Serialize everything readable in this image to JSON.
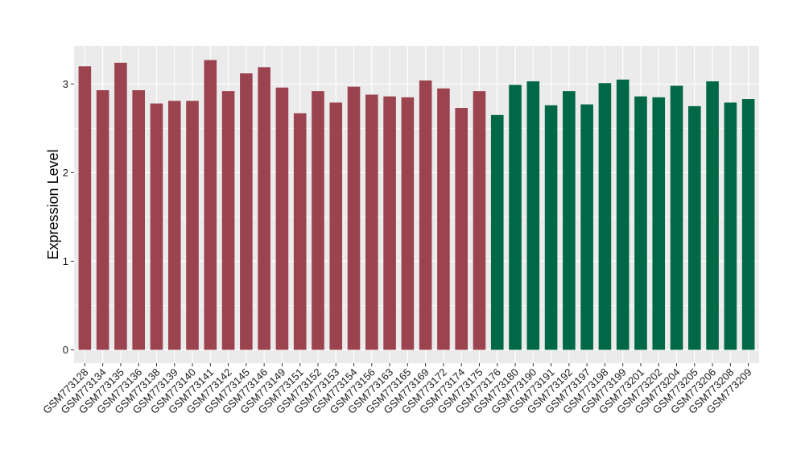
{
  "chart_data": {
    "type": "bar",
    "title": "",
    "xlabel": "",
    "ylabel": "Expression Level",
    "ylim": [
      -0.15,
      3.43
    ],
    "yticks": [
      0,
      1,
      2,
      3
    ],
    "grid": true,
    "legend": "none",
    "panel_color": "#ebebeb",
    "grid_color": "#ffffff",
    "categories": [
      "GSM773128",
      "GSM773134",
      "GSM773135",
      "GSM773136",
      "GSM773138",
      "GSM773139",
      "GSM773140",
      "GSM773141",
      "GSM773142",
      "GSM773145",
      "GSM773146",
      "GSM773149",
      "GSM773151",
      "GSM773152",
      "GSM773153",
      "GSM773154",
      "GSM773156",
      "GSM773163",
      "GSM773165",
      "GSM773169",
      "GSM773172",
      "GSM773174",
      "GSM773175",
      "GSM773176",
      "GSM773180",
      "GSM773190",
      "GSM773191",
      "GSM773192",
      "GSM773197",
      "GSM773198",
      "GSM773199",
      "GSM773201",
      "GSM773202",
      "GSM773204",
      "GSM773205",
      "GSM773206",
      "GSM773208",
      "GSM773209"
    ],
    "values": [
      3.2,
      2.93,
      3.24,
      2.93,
      2.78,
      2.81,
      2.81,
      3.27,
      2.92,
      3.12,
      3.19,
      2.96,
      2.67,
      2.92,
      2.79,
      2.97,
      2.88,
      2.86,
      2.85,
      3.04,
      2.95,
      2.73,
      2.92,
      2.65,
      2.99,
      3.03,
      2.76,
      2.92,
      2.77,
      3.01,
      3.05,
      2.86,
      2.85,
      2.98,
      2.75,
      3.03,
      2.79,
      2.83
    ],
    "group_colors": [
      "#9b4450",
      "#9b4450",
      "#9b4450",
      "#9b4450",
      "#9b4450",
      "#9b4450",
      "#9b4450",
      "#9b4450",
      "#9b4450",
      "#9b4450",
      "#9b4450",
      "#9b4450",
      "#9b4450",
      "#9b4450",
      "#9b4450",
      "#9b4450",
      "#9b4450",
      "#9b4450",
      "#9b4450",
      "#9b4450",
      "#9b4450",
      "#9b4450",
      "#9b4450",
      "#006846",
      "#006846",
      "#006846",
      "#006846",
      "#006846",
      "#006846",
      "#006846",
      "#006846",
      "#006846",
      "#006846",
      "#006846",
      "#006846",
      "#006846",
      "#006846",
      "#006846"
    ]
  }
}
